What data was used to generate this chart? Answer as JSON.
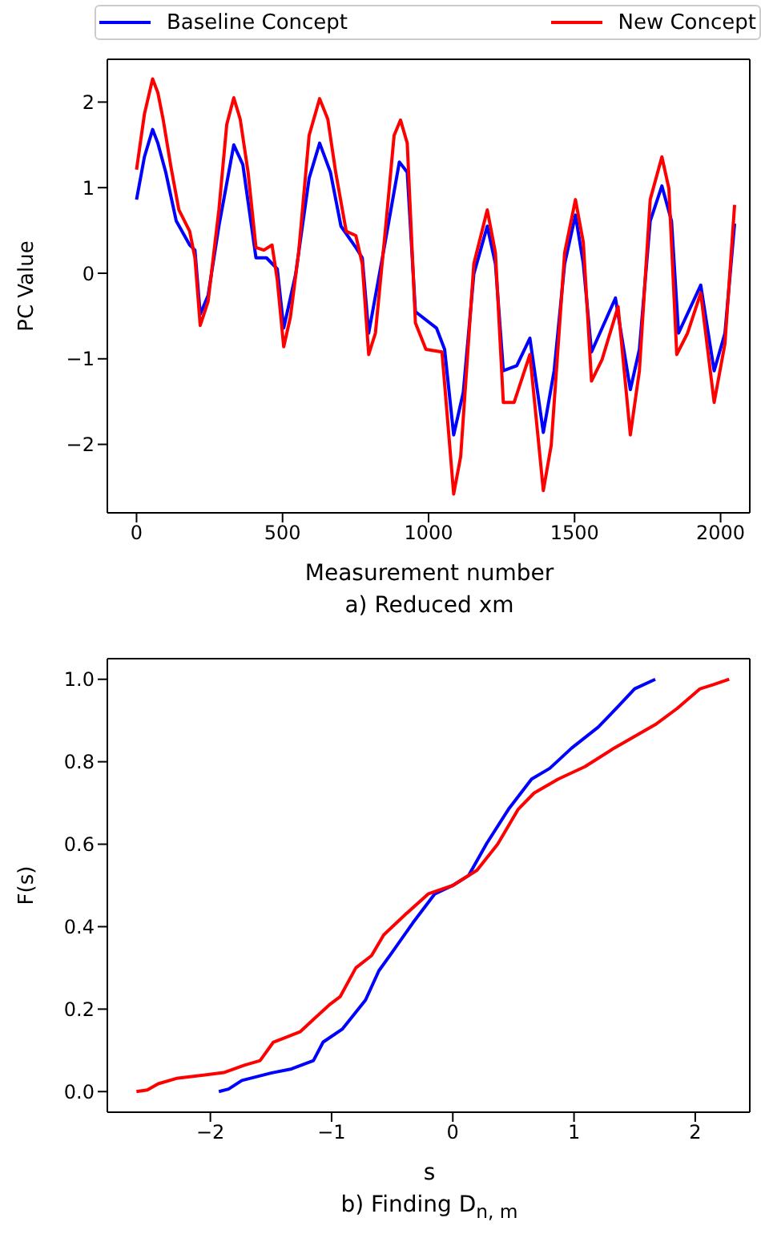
{
  "chart_data": [
    {
      "type": "line",
      "xlabel": "Measurement number",
      "ylabel": "PC Value",
      "annotations": [
        "a) Reduced xm"
      ],
      "legend": "top",
      "xlim": [
        -100,
        2100
      ],
      "ylim": [
        -2.8,
        2.5
      ],
      "xticks": [
        0,
        500,
        1000,
        1500,
        2000
      ],
      "yticks": [
        {
          "value": -2,
          "label": "−2"
        },
        {
          "value": -1,
          "label": "−1"
        },
        0,
        1,
        2
      ],
      "series": [
        {
          "name": "Baseline Concept",
          "color": "#0000ff",
          "x": [
            0,
            27,
            55,
            73,
            100,
            136,
            182,
            200,
            218,
            245,
            282,
            333,
            364,
            409,
            445,
            482,
            504,
            545,
            591,
            627,
            664,
            700,
            751,
            773,
            795,
            845,
            900,
            927,
            955,
            1027,
            1055,
            1086,
            1119,
            1155,
            1201,
            1229,
            1256,
            1302,
            1347,
            1393,
            1430,
            1466,
            1503,
            1530,
            1558,
            1640,
            1691,
            1722,
            1759,
            1799,
            1832,
            1856,
            1932,
            1978,
            2015,
            2048
          ],
          "values": [
            0.86,
            1.36,
            1.68,
            1.52,
            1.18,
            0.61,
            0.33,
            0.27,
            -0.48,
            -0.26,
            0.55,
            1.5,
            1.27,
            0.18,
            0.18,
            0.05,
            -0.64,
            -0.01,
            1.11,
            1.52,
            1.18,
            0.55,
            0.3,
            0.18,
            -0.7,
            0.24,
            1.3,
            1.18,
            -0.45,
            -0.64,
            -0.89,
            -1.89,
            -1.39,
            -0.01,
            0.55,
            0.11,
            -1.14,
            -1.08,
            -0.76,
            -1.86,
            -1.14,
            0.11,
            0.68,
            0.11,
            -0.92,
            -0.29,
            -1.36,
            -0.89,
            0.61,
            1.02,
            0.61,
            -0.7,
            -0.14,
            -1.14,
            -0.7,
            0.58
          ]
        },
        {
          "name": "New Concept",
          "color": "#ff0000",
          "x": [
            0,
            27,
            55,
            73,
            91,
            118,
            145,
            182,
            200,
            218,
            245,
            282,
            309,
            333,
            355,
            382,
            409,
            436,
            464,
            482,
            504,
            527,
            555,
            591,
            627,
            655,
            682,
            718,
            751,
            773,
            795,
            818,
            855,
            882,
            904,
            927,
            955,
            991,
            1046,
            1086,
            1110,
            1155,
            1201,
            1229,
            1256,
            1293,
            1347,
            1393,
            1420,
            1466,
            1503,
            1530,
            1558,
            1594,
            1649,
            1691,
            1722,
            1759,
            1799,
            1823,
            1850,
            1887,
            1932,
            1978,
            2015,
            2048
          ],
          "values": [
            1.21,
            1.86,
            2.27,
            2.11,
            1.8,
            1.24,
            0.74,
            0.49,
            0.18,
            -0.61,
            -0.33,
            0.74,
            1.74,
            2.05,
            1.8,
            1.18,
            0.3,
            0.27,
            0.33,
            -0.08,
            -0.86,
            -0.51,
            0.24,
            1.61,
            2.04,
            1.8,
            1.18,
            0.49,
            0.44,
            0.11,
            -0.95,
            -0.7,
            0.61,
            1.61,
            1.79,
            1.52,
            -0.58,
            -0.89,
            -0.92,
            -2.58,
            -2.14,
            0.11,
            0.74,
            0.24,
            -1.51,
            -1.51,
            -0.95,
            -2.54,
            -2.01,
            0.24,
            0.86,
            0.36,
            -1.26,
            -1.01,
            -0.39,
            -1.89,
            -1.14,
            0.86,
            1.36,
            0.99,
            -0.95,
            -0.7,
            -0.23,
            -1.51,
            -0.82,
            0.8
          ]
        }
      ]
    },
    {
      "type": "line",
      "xlabel": "s",
      "ylabel": "F(s)",
      "annotations": [
        "b) Finding D$_{n, m}$"
      ],
      "xlim": [
        -2.85,
        2.45
      ],
      "ylim": [
        -0.05,
        1.05
      ],
      "xticks": [
        {
          "value": -2,
          "label": "−2"
        },
        {
          "value": -1,
          "label": "−1"
        },
        0,
        1,
        2
      ],
      "yticks": [
        {
          "value": 0,
          "label": "0.0"
        },
        {
          "value": 0.2,
          "label": "0.2"
        },
        {
          "value": 0.4,
          "label": "0.4"
        },
        {
          "value": 0.6,
          "label": "0.6"
        },
        {
          "value": 0.8,
          "label": "0.8"
        },
        {
          "value": 1,
          "label": "1.0"
        }
      ],
      "series": [
        {
          "color": "#0000ff",
          "x": [
            -1.93,
            -1.85,
            -1.74,
            -1.5,
            -1.33,
            -1.15,
            -1.07,
            -0.91,
            -0.72,
            -0.61,
            -0.5,
            -0.33,
            -0.15,
            0,
            0.13,
            0.28,
            0.46,
            0.65,
            0.8,
            0.98,
            1.2,
            1.37,
            1.5,
            1.67
          ],
          "values": [
            0,
            0.006,
            0.027,
            0.045,
            0.055,
            0.075,
            0.12,
            0.152,
            0.222,
            0.293,
            0.338,
            0.409,
            0.479,
            0.5,
            0.524,
            0.602,
            0.685,
            0.758,
            0.784,
            0.833,
            0.884,
            0.936,
            0.977,
            1.0
          ]
        },
        {
          "color": "#ff0000",
          "x": [
            -2.61,
            -2.52,
            -2.43,
            -2.28,
            -1.89,
            -1.72,
            -1.59,
            -1.48,
            -1.39,
            -1.26,
            -1.15,
            -1.02,
            -0.93,
            -0.8,
            -0.67,
            -0.57,
            -0.39,
            -0.2,
            0,
            0.2,
            0.37,
            0.54,
            0.67,
            0.87,
            1.09,
            1.33,
            1.67,
            1.85,
            2.04,
            2.15,
            2.28
          ],
          "values": [
            0,
            0.004,
            0.019,
            0.032,
            0.046,
            0.064,
            0.075,
            0.12,
            0.13,
            0.145,
            0.175,
            0.21,
            0.23,
            0.3,
            0.33,
            0.38,
            0.43,
            0.48,
            0.5,
            0.537,
            0.6,
            0.685,
            0.724,
            0.758,
            0.788,
            0.833,
            0.89,
            0.929,
            0.977,
            0.987,
            1.0
          ]
        }
      ]
    }
  ]
}
